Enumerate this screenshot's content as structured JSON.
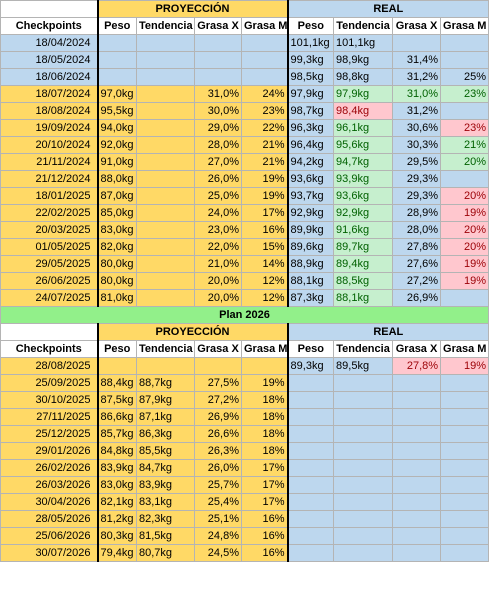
{
  "colors": {
    "projection": "#ffd966",
    "real": "#bdd7ee",
    "good": "#c6efce",
    "good_text": "#006100",
    "bad": "#ffc7ce",
    "bad_text": "#9c0006",
    "plan": "#92f08a"
  },
  "tables": [
    {
      "group_headers": [
        "PROYECCIÓN",
        "REAL"
      ],
      "column_headers": [
        "Checkpoints",
        "Peso",
        "Tendencia",
        "Grasa X",
        "Grasa M",
        "Peso",
        "Tendencia",
        "Grasa X",
        "Grasa M"
      ],
      "rows": [
        {
          "checkpoint": "18/04/2024",
          "fill": "real",
          "cells": [
            null,
            null,
            null,
            null,
            "101,1kg",
            "101,1kg",
            null,
            null
          ]
        },
        {
          "checkpoint": "18/05/2024",
          "fill": "real",
          "cells": [
            null,
            null,
            null,
            null,
            "99,3kg",
            "98,9kg",
            "31,4%",
            null
          ]
        },
        {
          "checkpoint": "18/06/2024",
          "fill": "real",
          "cells": [
            null,
            null,
            null,
            null,
            "98,5kg",
            "98,8kg",
            "31,2%",
            "25%"
          ]
        },
        {
          "checkpoint": "18/07/2024",
          "cells": [
            "97,0kg",
            null,
            "31,0%",
            "24%",
            "97,9kg",
            {
              "text": "97,9kg",
              "status": "good"
            },
            {
              "text": "31,0%",
              "status": "good"
            },
            {
              "text": "23%",
              "status": "good"
            }
          ]
        },
        {
          "checkpoint": "18/08/2024",
          "cells": [
            "95,5kg",
            null,
            "30,0%",
            "23%",
            "98,7kg",
            {
              "text": "98,4kg",
              "status": "bad"
            },
            "31,2%",
            null
          ]
        },
        {
          "checkpoint": "19/09/2024",
          "cells": [
            "94,0kg",
            null,
            "29,0%",
            "22%",
            "96,3kg",
            {
              "text": "96,1kg",
              "status": "good"
            },
            "30,6%",
            {
              "text": "23%",
              "status": "bad"
            }
          ]
        },
        {
          "checkpoint": "20/10/2024",
          "cells": [
            "92,0kg",
            null,
            "28,0%",
            "21%",
            "96,4kg",
            {
              "text": "95,6kg",
              "status": "good"
            },
            "30,3%",
            {
              "text": "21%",
              "status": "good"
            }
          ]
        },
        {
          "checkpoint": "21/11/2024",
          "cells": [
            "91,0kg",
            null,
            "27,0%",
            "21%",
            "94,2kg",
            {
              "text": "94,7kg",
              "status": "good"
            },
            "29,5%",
            {
              "text": "20%",
              "status": "good"
            }
          ]
        },
        {
          "checkpoint": "21/12/2024",
          "cells": [
            "88,0kg",
            null,
            "26,0%",
            "19%",
            "93,6kg",
            {
              "text": "93,9kg",
              "status": "good"
            },
            "29,3%",
            null
          ]
        },
        {
          "checkpoint": "18/01/2025",
          "cells": [
            "87,0kg",
            null,
            "25,0%",
            "19%",
            "93,7kg",
            {
              "text": "93,6kg",
              "status": "good"
            },
            "29,3%",
            {
              "text": "20%",
              "status": "bad"
            }
          ]
        },
        {
          "checkpoint": "22/02/2025",
          "cells": [
            "85,0kg",
            null,
            "24,0%",
            "17%",
            "92,9kg",
            {
              "text": "92,9kg",
              "status": "good"
            },
            "28,9%",
            {
              "text": "19%",
              "status": "bad"
            }
          ]
        },
        {
          "checkpoint": "20/03/2025",
          "cells": [
            "83,0kg",
            null,
            "23,0%",
            "16%",
            "89,9kg",
            {
              "text": "91,6kg",
              "status": "good"
            },
            "28,0%",
            {
              "text": "20%",
              "status": "bad"
            }
          ]
        },
        {
          "checkpoint": "01/05/2025",
          "cells": [
            "82,0kg",
            null,
            "22,0%",
            "15%",
            "89,6kg",
            {
              "text": "89,7kg",
              "status": "good"
            },
            "27,8%",
            {
              "text": "20%",
              "status": "bad"
            }
          ]
        },
        {
          "checkpoint": "29/05/2025",
          "cells": [
            "80,0kg",
            null,
            "21,0%",
            "14%",
            "88,9kg",
            {
              "text": "89,4kg",
              "status": "good"
            },
            "27,6%",
            {
              "text": "19%",
              "status": "bad"
            }
          ]
        },
        {
          "checkpoint": "26/06/2025",
          "cells": [
            "80,0kg",
            null,
            "20,0%",
            "12%",
            "88,1kg",
            {
              "text": "88,5kg",
              "status": "good"
            },
            "27,2%",
            {
              "text": "19%",
              "status": "bad"
            }
          ]
        },
        {
          "checkpoint": "24/07/2025",
          "cells": [
            "81,0kg",
            null,
            "20,0%",
            "12%",
            "87,3kg",
            {
              "text": "88,1kg",
              "status": "good"
            },
            "26,9%",
            null
          ]
        }
      ]
    },
    {
      "title": "Plan 2026",
      "group_headers": [
        "PROYECCIÓN",
        "REAL"
      ],
      "column_headers": [
        "Checkpoints",
        "Peso",
        "Tendencia",
        "Grasa X",
        "Grasa M",
        "Peso",
        "Tendencia",
        "Grasa X",
        "Grasa M"
      ],
      "rows": [
        {
          "checkpoint": "28/08/2025",
          "cells": [
            null,
            null,
            null,
            null,
            "89,3kg",
            "89,5kg",
            {
              "text": "27,8%",
              "status": "bad"
            },
            {
              "text": "19%",
              "status": "bad"
            }
          ]
        },
        {
          "checkpoint": "25/09/2025",
          "cells": [
            "88,4kg",
            "88,7kg",
            "27,5%",
            "19%",
            null,
            null,
            null,
            null
          ]
        },
        {
          "checkpoint": "30/10/2025",
          "cells": [
            "87,5kg",
            "87,9kg",
            "27,2%",
            "18%",
            null,
            null,
            null,
            null
          ]
        },
        {
          "checkpoint": "27/11/2025",
          "cells": [
            "86,6kg",
            "87,1kg",
            "26,9%",
            "18%",
            null,
            null,
            null,
            null
          ]
        },
        {
          "checkpoint": "25/12/2025",
          "cells": [
            "85,7kg",
            "86,3kg",
            "26,6%",
            "18%",
            null,
            null,
            null,
            null
          ]
        },
        {
          "checkpoint": "29/01/2026",
          "cells": [
            "84,8kg",
            "85,5kg",
            "26,3%",
            "18%",
            null,
            null,
            null,
            null
          ]
        },
        {
          "checkpoint": "26/02/2026",
          "cells": [
            "83,9kg",
            "84,7kg",
            "26,0%",
            "17%",
            null,
            null,
            null,
            null
          ]
        },
        {
          "checkpoint": "26/03/2026",
          "cells": [
            "83,0kg",
            "83,9kg",
            "25,7%",
            "17%",
            null,
            null,
            null,
            null
          ]
        },
        {
          "checkpoint": "30/04/2026",
          "cells": [
            "82,1kg",
            "83,1kg",
            "25,4%",
            "17%",
            null,
            null,
            null,
            null
          ]
        },
        {
          "checkpoint": "28/05/2026",
          "cells": [
            "81,2kg",
            "82,3kg",
            "25,1%",
            "16%",
            null,
            null,
            null,
            null
          ]
        },
        {
          "checkpoint": "25/06/2026",
          "cells": [
            "80,3kg",
            "81,5kg",
            "24,8%",
            "16%",
            null,
            null,
            null,
            null
          ]
        },
        {
          "checkpoint": "30/07/2026",
          "cells": [
            "79,4kg",
            "80,7kg",
            "24,5%",
            "16%",
            null,
            null,
            null,
            null
          ]
        }
      ]
    }
  ]
}
